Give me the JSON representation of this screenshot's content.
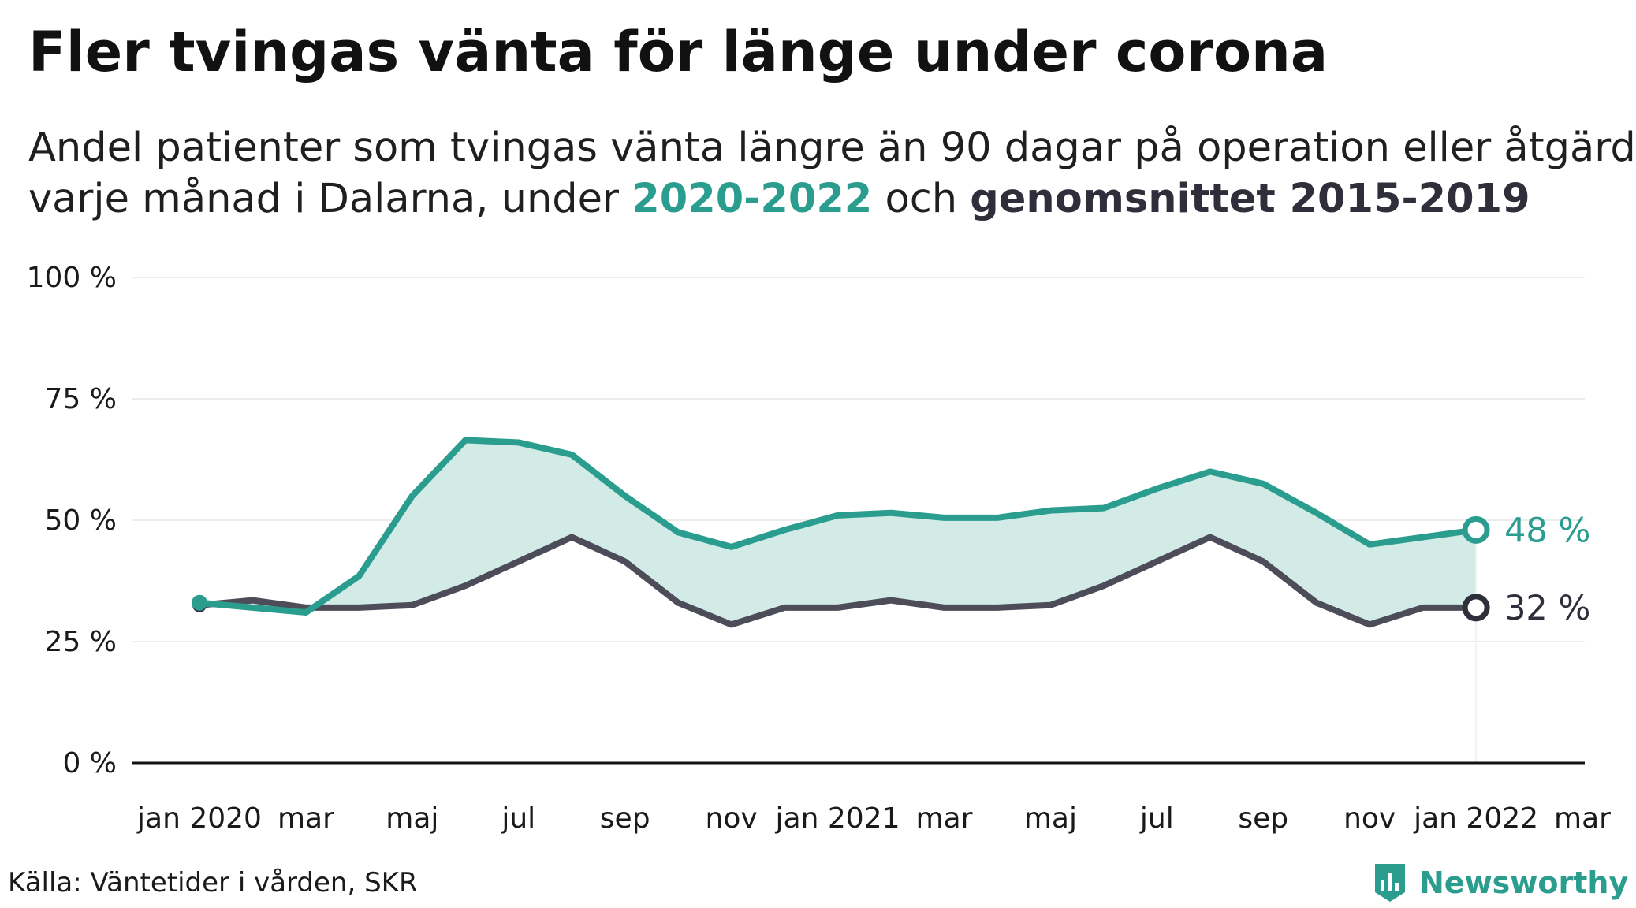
{
  "title": "Fler tvingas vänta för länge under corona",
  "subtitle": {
    "line1": "Andel patienter som tvingas vänta längre än 90 dagar på operation eller åtgärd",
    "line2_prefix": "varje månad i Dalarna, under ",
    "highlight_current": "2020-2022",
    "line2_middle": " och ",
    "highlight_average": "genomsnittet 2015-2019"
  },
  "source": "Källa: Väntetider i vården, SKR",
  "brand": "Newsworthy",
  "colors": {
    "current": "#2a9d8f",
    "average": "#4d4d59",
    "band_fill": "#d2ebe7",
    "axis": "#111111",
    "grid": "#e6e6e6"
  },
  "chart_data": {
    "type": "line",
    "x": [
      "2020-01",
      "2020-02",
      "2020-03",
      "2020-04",
      "2020-05",
      "2020-06",
      "2020-07",
      "2020-08",
      "2020-09",
      "2020-10",
      "2020-11",
      "2020-12",
      "2021-01",
      "2021-02",
      "2021-03",
      "2021-04",
      "2021-05",
      "2021-06",
      "2021-07",
      "2021-08",
      "2021-09",
      "2021-10",
      "2021-11",
      "2021-12",
      "2022-01"
    ],
    "x_tick_labels": [
      {
        "x": "2020-01",
        "label": "jan 2020"
      },
      {
        "x": "2020-03",
        "label": "mar"
      },
      {
        "x": "2020-05",
        "label": "maj"
      },
      {
        "x": "2020-07",
        "label": "jul"
      },
      {
        "x": "2020-09",
        "label": "sep"
      },
      {
        "x": "2020-11",
        "label": "nov"
      },
      {
        "x": "2021-01",
        "label": "jan 2021"
      },
      {
        "x": "2021-03",
        "label": "mar"
      },
      {
        "x": "2021-05",
        "label": "maj"
      },
      {
        "x": "2021-07",
        "label": "jul"
      },
      {
        "x": "2021-09",
        "label": "sep"
      },
      {
        "x": "2021-11",
        "label": "nov"
      },
      {
        "x": "2022-01",
        "label": "jan 2022"
      },
      {
        "x": "2022-03",
        "label": "mar"
      }
    ],
    "x_range": [
      "2020-01",
      "2022-03"
    ],
    "y_ticks": [
      0,
      25,
      50,
      75,
      100
    ],
    "y_tick_labels": [
      "0 %",
      "25 %",
      "50 %",
      "75 %",
      "100 %"
    ],
    "ylim": [
      0,
      100
    ],
    "grid": true,
    "fill_between_series": true,
    "series": [
      {
        "key": "current",
        "values": [
          33,
          32,
          31,
          38.5,
          55,
          66.5,
          66,
          63.5,
          55,
          47.5,
          44.5,
          48,
          51,
          51.5,
          50.5,
          50.5,
          52,
          52.5,
          56.5,
          60,
          57.5,
          51.5,
          45,
          46.5,
          48
        ],
        "end_label": "48 %"
      },
      {
        "key": "average",
        "values": [
          32.5,
          33.5,
          32,
          32,
          32.5,
          36.5,
          41.5,
          46.5,
          41.5,
          33,
          28.5,
          32,
          32,
          33.5,
          32,
          32,
          32.5,
          36.5,
          41.5,
          46.5,
          41.5,
          33,
          28.5,
          32,
          32
        ],
        "end_label": "32 %"
      }
    ]
  }
}
